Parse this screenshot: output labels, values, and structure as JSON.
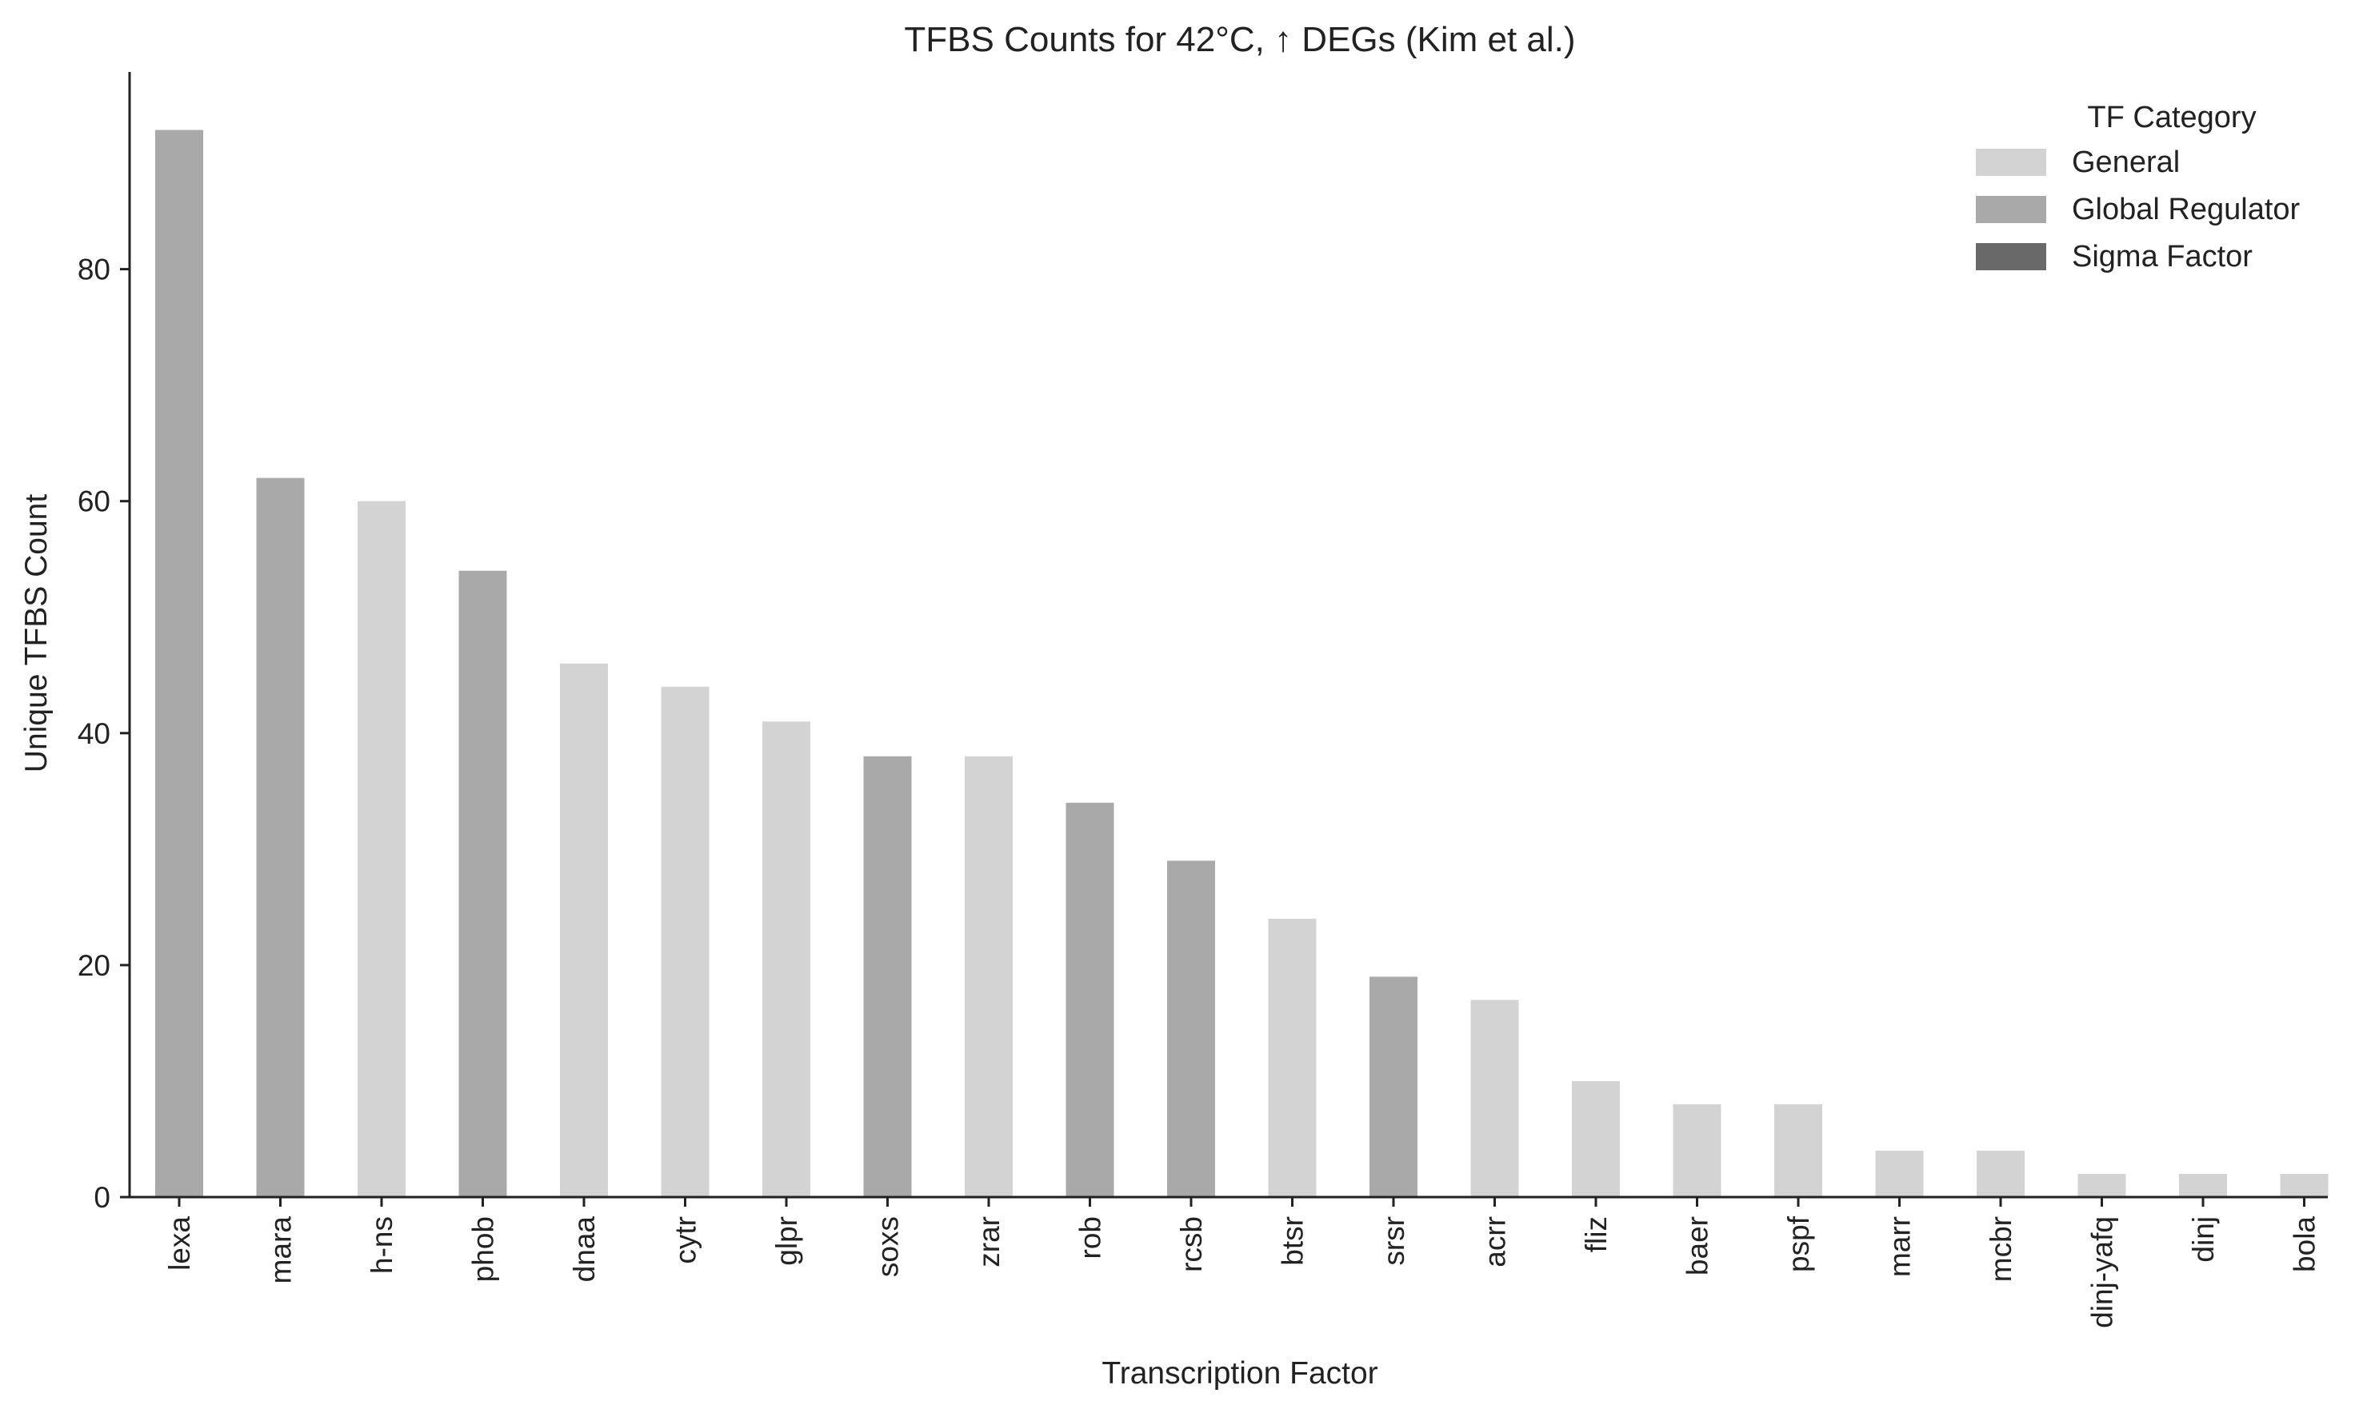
{
  "chart_data": {
    "type": "bar",
    "title": "TFBS Counts for 42°C, ↑ DEGs (Kim et al.)",
    "xlabel": "Transcription Factor",
    "ylabel": "Unique TFBS Count",
    "ylim": [
      0,
      97
    ],
    "yticks": [
      0,
      20,
      40,
      60,
      80
    ],
    "grid": false,
    "categories": [
      "lexa",
      "mara",
      "h-ns",
      "phob",
      "dnaa",
      "cytr",
      "glpr",
      "soxs",
      "zrar",
      "rob",
      "rcsb",
      "btsr",
      "srsr",
      "acrr",
      "fliz",
      "baer",
      "pspf",
      "marr",
      "mcbr",
      "dinj-yafq",
      "dinj",
      "bola"
    ],
    "values": [
      92,
      62,
      60,
      54,
      46,
      44,
      41,
      38,
      38,
      34,
      29,
      24,
      19,
      17,
      10,
      8,
      8,
      4,
      4,
      2,
      2,
      2
    ],
    "bar_category": [
      "Global Regulator",
      "Global Regulator",
      "General",
      "Global Regulator",
      "General",
      "General",
      "General",
      "Global Regulator",
      "General",
      "Global Regulator",
      "Global Regulator",
      "General",
      "Global Regulator",
      "General",
      "General",
      "General",
      "General",
      "General",
      "General",
      "General",
      "General",
      "General"
    ],
    "legend": {
      "title": "TF Category",
      "position": "top-right",
      "entries": [
        {
          "name": "General",
          "color": "#d3d3d3"
        },
        {
          "name": "Global Regulator",
          "color": "#a9a9a9"
        },
        {
          "name": "Sigma Factor",
          "color": "#696969"
        }
      ]
    }
  }
}
